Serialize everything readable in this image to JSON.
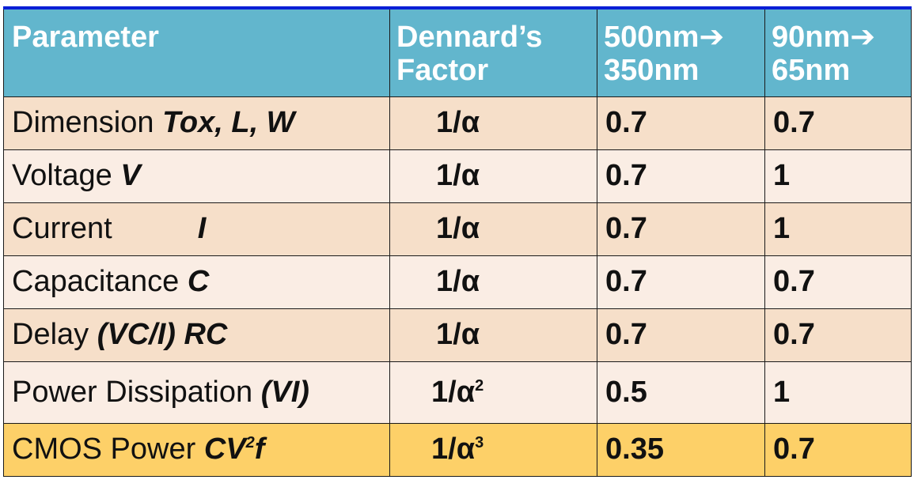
{
  "table": {
    "headers": {
      "parameter": "Parameter",
      "dennard_line1": "Dennard’s",
      "dennard_line2": "Factor",
      "col1_line1": "500nm➔",
      "col1_line2": "350nm",
      "col2_line1": "90nm➔",
      "col2_line2": "65nm"
    },
    "rows": [
      {
        "label": "Dimension",
        "symbol": "Tox, L, W",
        "factor_base": "1/α",
        "factor_exp": "",
        "v1": "0.7",
        "v2": "0.7",
        "v2_highlight": false
      },
      {
        "label": "Voltage",
        "symbol": "V",
        "factor_base": "1/α",
        "factor_exp": "",
        "v1": "0.7",
        "v2": "1",
        "v2_highlight": true
      },
      {
        "label": "Current",
        "symbol": "I",
        "factor_base": "1/α",
        "factor_exp": "",
        "v1": "0.7",
        "v2": "1",
        "v2_highlight": true
      },
      {
        "label": "Capacitance",
        "symbol": "C",
        "factor_base": "1/α",
        "factor_exp": "",
        "v1": "0.7",
        "v2": "0.7",
        "v2_highlight": false
      },
      {
        "label": "Delay",
        "symbol": "(VC/I) RC",
        "factor_base": "1/α",
        "factor_exp": "",
        "v1": "0.7",
        "v2": "0.7",
        "v2_highlight": false
      },
      {
        "label": "Power Dissipation",
        "symbol": "(VI)",
        "factor_base": "1/α",
        "factor_exp": "2",
        "v1": "0.5",
        "v2": "1",
        "v2_highlight": true
      },
      {
        "label": "CMOS Power",
        "symbol_pre": "CV",
        "symbol_exp": "2",
        "symbol_post": "f",
        "factor_base": "1/α",
        "factor_exp": "3",
        "v1": "0.35",
        "v2": "0.7",
        "v2_highlight": true
      }
    ]
  },
  "colors": {
    "header_bg": "#62b6cd",
    "top_rule": "#0a1fd6",
    "row_dark": "#f6dfc9",
    "row_light": "#faede4",
    "row_highlight": "#fdd068",
    "highlight_text": "#e60000"
  }
}
